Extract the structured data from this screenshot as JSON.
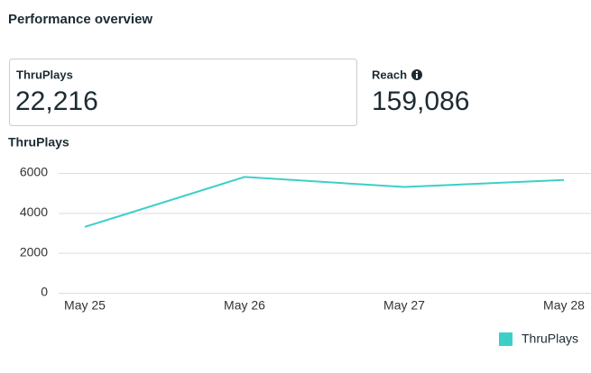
{
  "header": {
    "title": "Performance overview"
  },
  "metrics": [
    {
      "label": "ThruPlays",
      "value": "22,216"
    },
    {
      "label": "Reach",
      "value": "159,086"
    }
  ],
  "chart_data": {
    "type": "line",
    "title": "ThruPlays",
    "categories": [
      "May 25",
      "May 26",
      "May 27",
      "May 28"
    ],
    "series": [
      {
        "name": "ThruPlays",
        "color": "#3ccfc9",
        "values": [
          3300,
          5800,
          5300,
          5650
        ]
      }
    ],
    "ylim": [
      0,
      6000
    ],
    "yticks": [
      0,
      2000,
      4000,
      6000
    ],
    "grid": true,
    "legend": "bottom-right"
  }
}
